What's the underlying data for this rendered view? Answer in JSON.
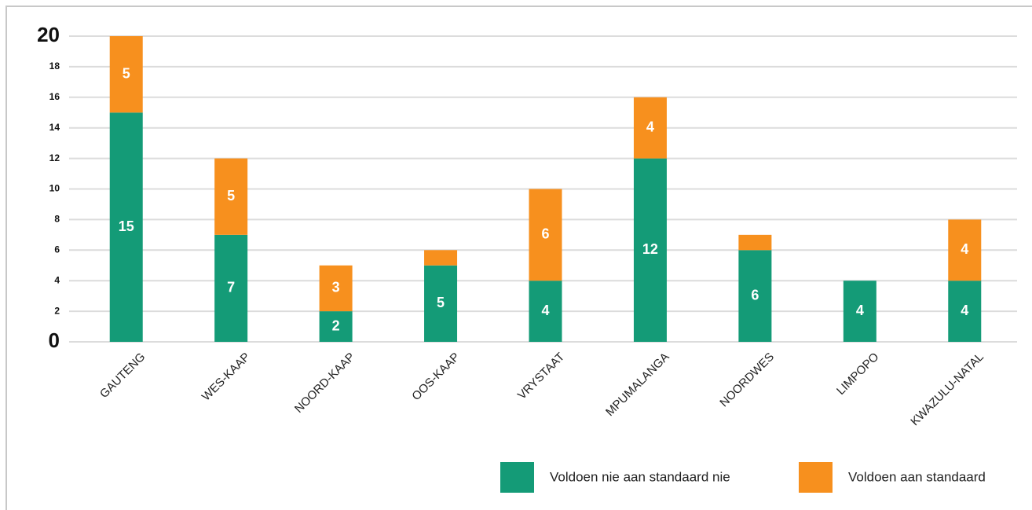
{
  "chart_data": {
    "type": "stacked-bar",
    "categories": [
      "GAUTENG",
      "WES-KAAP",
      "NOORD-KAAP",
      "OOS-KAAP",
      "VRYSTAAT",
      "MPUMALANGA",
      "NOORDWES",
      "LIMPOPO",
      "KWAZULU-NATAL"
    ],
    "series": [
      {
        "name": "Voldoen nie aan standaard nie",
        "color": "#149b77",
        "values": [
          15,
          7,
          2,
          5,
          4,
          12,
          6,
          4,
          4
        ],
        "value_labels": [
          "15",
          "7",
          "2",
          "5",
          "4",
          "12",
          "6",
          "4",
          "4"
        ]
      },
      {
        "name": "Voldoen aan standaard",
        "color": "#f7901e",
        "values": [
          5,
          5,
          3,
          1,
          6,
          4,
          1,
          0,
          4
        ],
        "value_labels": [
          "5",
          "5",
          "3",
          null,
          "6",
          "4",
          null,
          null,
          "4"
        ]
      }
    ],
    "ylim": [
      0,
      20
    ],
    "yticks": [
      0,
      2,
      4,
      6,
      8,
      10,
      12,
      14,
      16,
      18,
      20
    ],
    "grid": true,
    "legend": "bottom"
  }
}
